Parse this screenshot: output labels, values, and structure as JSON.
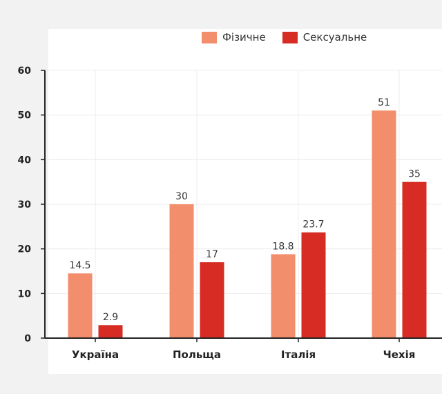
{
  "colors": {
    "physical": "#f28e6c",
    "sexual": "#d62c23",
    "axis": "#222222",
    "grid": "#ececec"
  },
  "legend": {
    "physical_label": "Фізичне",
    "sexual_label": "Сексуальне"
  },
  "chart_data": {
    "type": "bar",
    "categories": [
      "Україна",
      "Польща",
      "Італія",
      "Чехія"
    ],
    "series": [
      {
        "name": "Фізичне",
        "values": [
          14.5,
          30,
          18.8,
          51
        ],
        "value_labels": [
          "14.5",
          "30",
          "18.8",
          "51"
        ]
      },
      {
        "name": "Сексуальне",
        "values": [
          2.9,
          17,
          23.7,
          35
        ],
        "value_labels": [
          "2.9",
          "17",
          "23.7",
          "35"
        ]
      }
    ],
    "yticks": [
      "0",
      "10",
      "20",
      "30",
      "40",
      "50",
      "60"
    ],
    "ylim": [
      0,
      60
    ],
    "title": "",
    "xlabel": "",
    "ylabel": "",
    "grid": true,
    "legend_position": "top-right"
  }
}
